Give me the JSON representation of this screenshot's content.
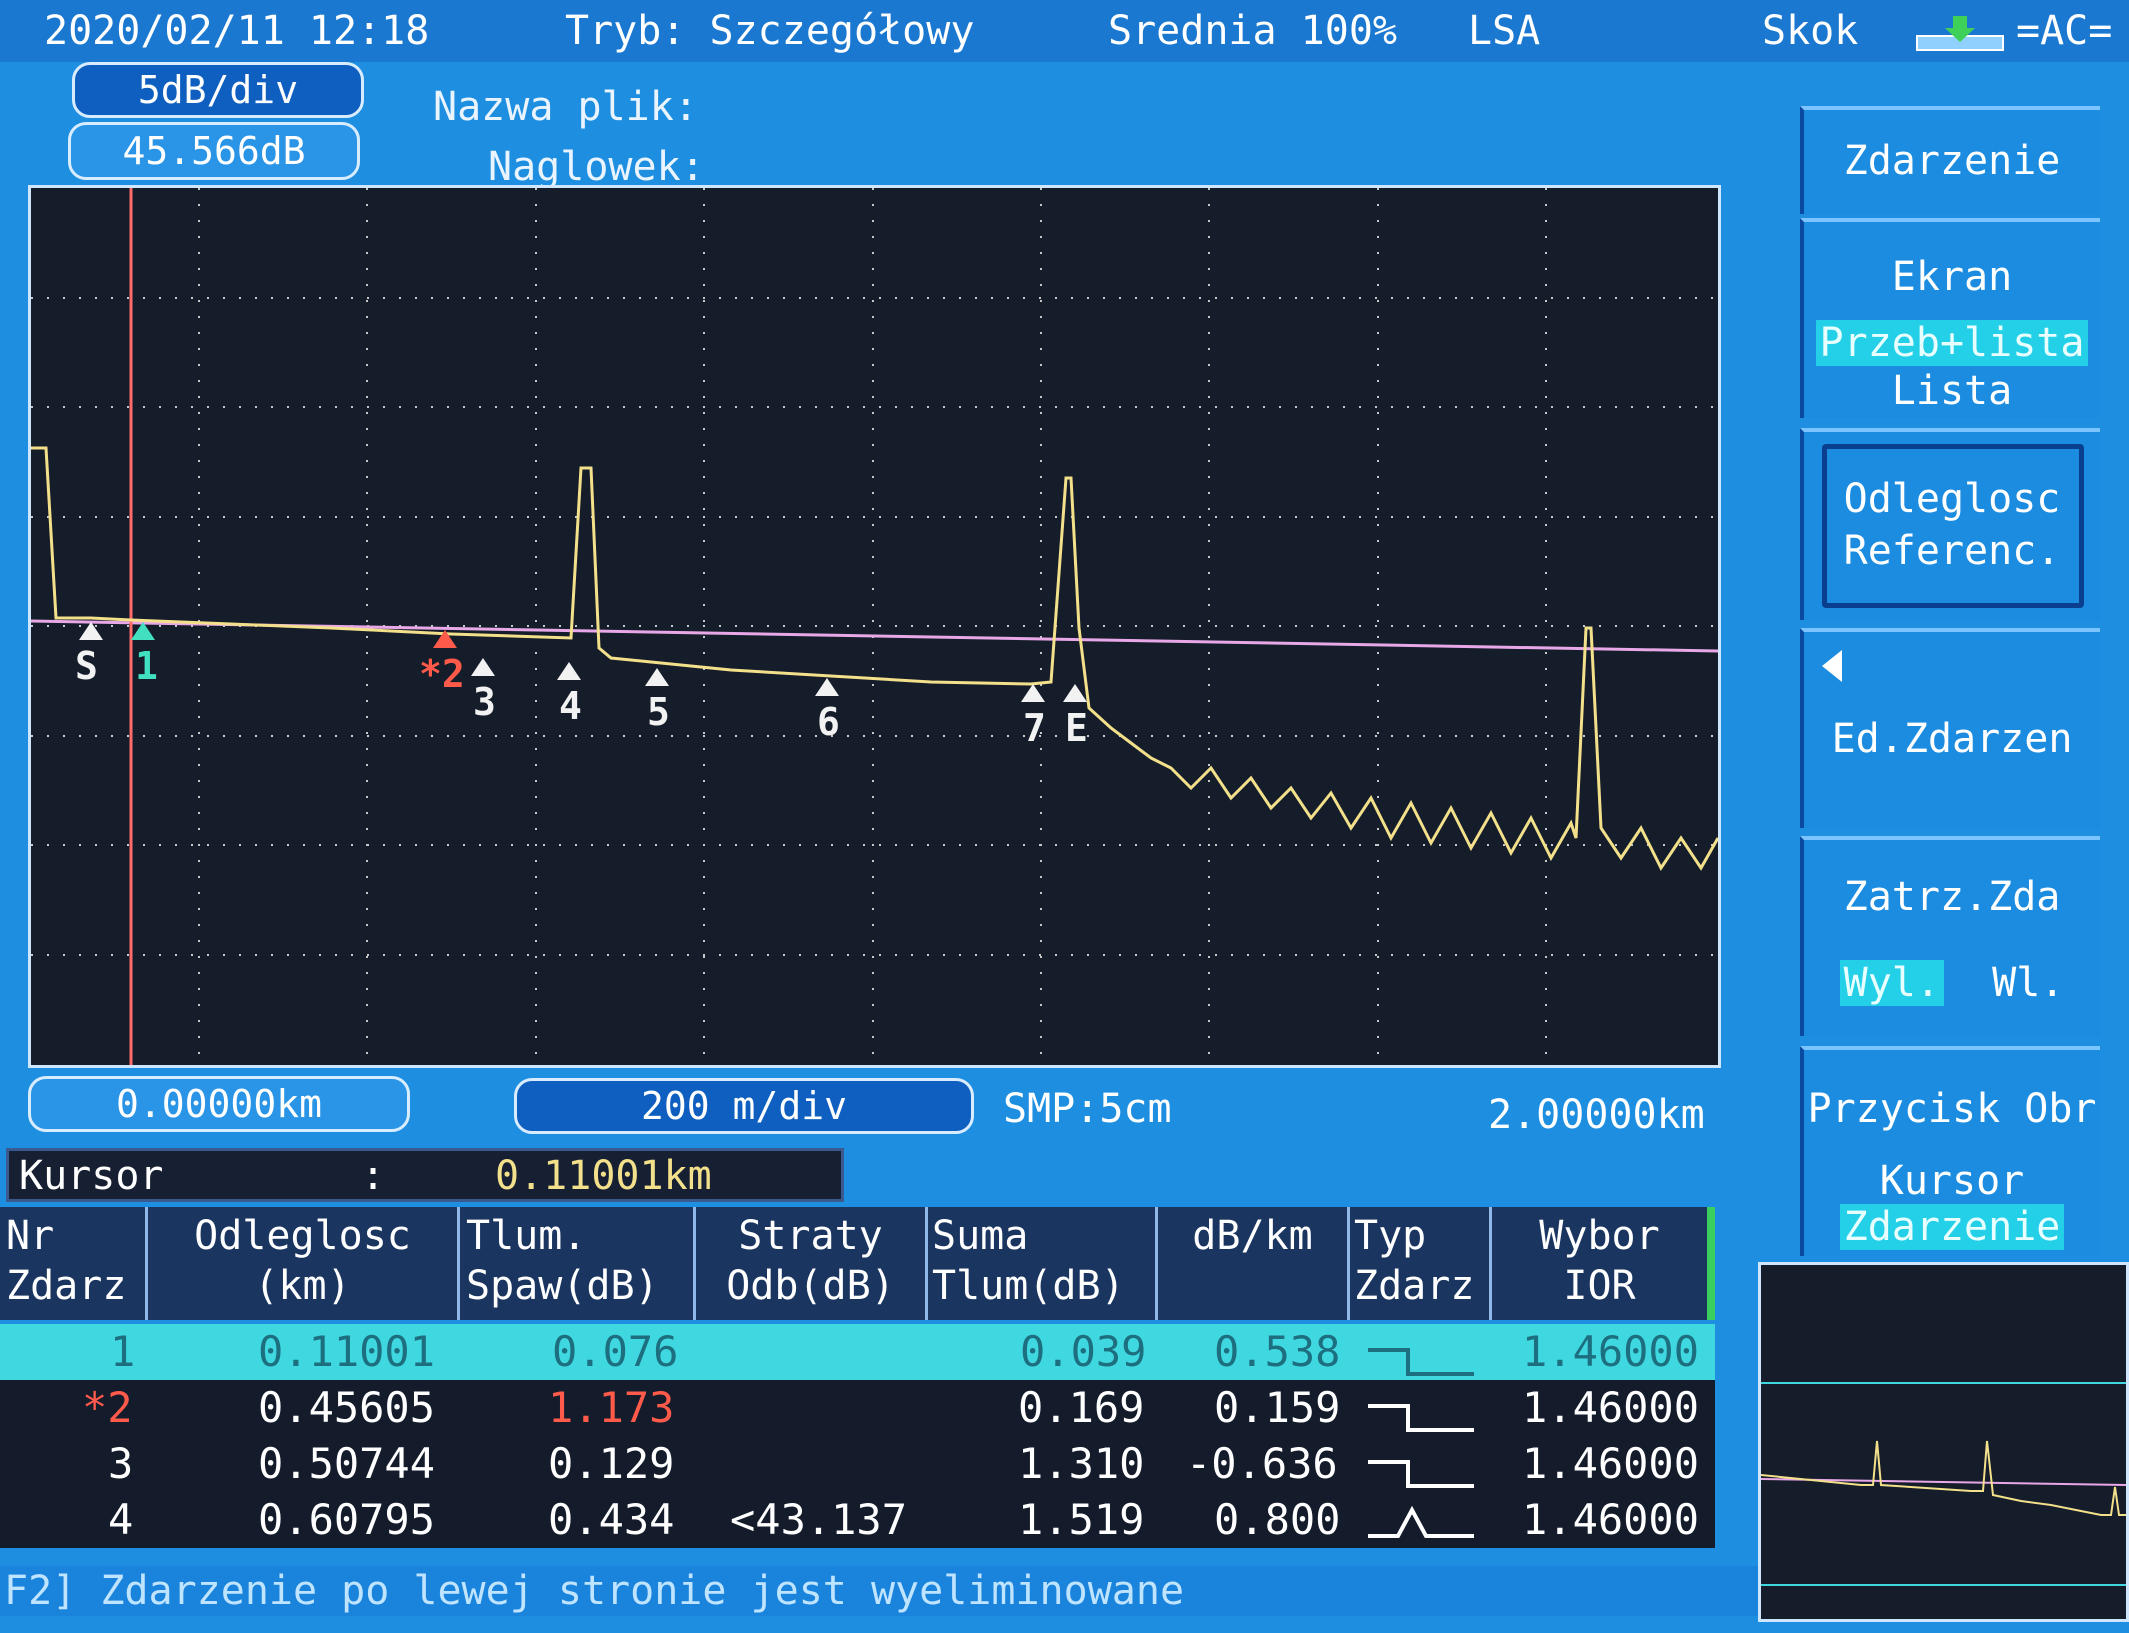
{
  "status": {
    "datetime": "2020/02/11 12:18",
    "mode": "Tryb: Szczegółowy",
    "average": "Srednia 100%",
    "lsa": "LSA",
    "skok": "Skok",
    "coupling": "=AC="
  },
  "scale": {
    "db_per_div": "5dB/div",
    "db_value": "45.566dB",
    "start_km": "0.00000km",
    "m_per_div": "200 m/div",
    "smp": "SMP:5cm",
    "end_km": "2.00000km"
  },
  "file": {
    "name_label": "Nazwa plik:",
    "header_label": "Naglowek:"
  },
  "side_menu": {
    "zdarzenie": "Zdarzenie",
    "ekran": "Ekran",
    "ekran_opt1": "Przeb+lista",
    "ekran_opt2": "Lista",
    "odleglosc1": "Odleglosc",
    "odleglosc2": "Referenc.",
    "ed_zdarzen": "Ed.Zdarzen",
    "zatrz": "Zatrz.Zda",
    "wyl": "Wyl.",
    "wl": "Wl.",
    "przycisk": "Przycisk Obr",
    "kursor": "Kursor",
    "kursor_opt": "Zdarzenie"
  },
  "cursor": {
    "label": "Kursor",
    "sep": ":",
    "value": "0.11001km"
  },
  "markers": {
    "s": "S",
    "m1": "1",
    "m2": "*2",
    "m3": "3",
    "m4": "4",
    "m5": "5",
    "m6": "6",
    "m7": "7",
    "e": "E"
  },
  "table": {
    "headers": [
      [
        "Nr",
        "Zdarz"
      ],
      [
        "Odleglosc",
        "(km)"
      ],
      [
        "Tlum.",
        "Spaw(dB)"
      ],
      [
        "Straty",
        "Odb(dB)"
      ],
      [
        "Suma",
        "Tlum(dB)"
      ],
      [
        "dB/km",
        ""
      ],
      [
        "Typ",
        "Zdarz"
      ],
      [
        "Wybor",
        "IOR"
      ]
    ],
    "rows": [
      {
        "nr": "1",
        "dist": "0.11001",
        "splice": "0.076",
        "refl": "",
        "sum": "0.039",
        "dbkm": "0.538",
        "ior": "1.46000"
      },
      {
        "nr": "*2",
        "dist": "0.45605",
        "splice": "1.173",
        "refl": "",
        "sum": "0.169",
        "dbkm": "0.159",
        "ior": "1.46000"
      },
      {
        "nr": "3",
        "dist": "0.50744",
        "splice": "0.129",
        "refl": "",
        "sum": "1.310",
        "dbkm": "-0.636",
        "ior": "1.46000"
      },
      {
        "nr": "4",
        "dist": "0.60795",
        "splice": "0.434",
        "refl": "<43.137",
        "sum": "1.519",
        "dbkm": "0.800",
        "ior": "1.46000"
      }
    ]
  },
  "footer": "F2] Zdarzenie po lewej stronie jest wyeliminowane",
  "colors": {
    "trace": "#f3e08a",
    "grid": "#c8c8c8",
    "ref_line": "#e8a8e8",
    "selected_row": "#3fd8e0",
    "alert": "#ff5a4a",
    "cursor_line": "#ff6a6a"
  }
}
